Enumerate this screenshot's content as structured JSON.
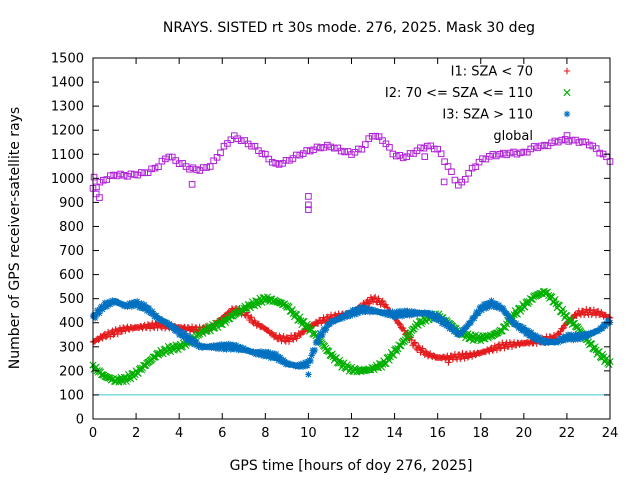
{
  "chart_data": {
    "type": "scatter",
    "title": "NRAYS. SISTED rt 30s mode. 276, 2025. Mask 30 deg",
    "xlabel": "GPS time [hours of doy 276, 2025]",
    "ylabel": "Number of GPS receiver-satellite rays",
    "xlim": [
      0,
      24
    ],
    "ylim": [
      0,
      1500
    ],
    "xticks": [
      0,
      2,
      4,
      6,
      8,
      10,
      12,
      14,
      16,
      18,
      20,
      22,
      24
    ],
    "yticks": [
      0,
      100,
      200,
      300,
      400,
      500,
      600,
      700,
      800,
      900,
      1000,
      1100,
      1200,
      1300,
      1400,
      1500
    ],
    "grid": false,
    "legend_position": "top-right",
    "reference_line": {
      "y": 100,
      "color": "#40c8d8"
    },
    "series": [
      {
        "name": "I1: SZA < 70",
        "marker": "+",
        "color": "#e41a1c",
        "x": [
          0,
          0.5,
          1,
          1.5,
          2,
          2.5,
          3,
          3.5,
          4,
          4.5,
          5,
          5.5,
          6,
          6.5,
          7,
          7.5,
          8,
          8.5,
          9,
          9.5,
          10,
          10.5,
          11,
          11.5,
          12,
          12.5,
          13,
          13.5,
          14,
          14.5,
          15,
          15.5,
          16,
          16.5,
          17,
          17.5,
          18,
          18.5,
          19,
          19.5,
          20,
          20.5,
          21,
          21.5,
          22,
          22.5,
          23,
          23.5,
          24
        ],
        "y": [
          320,
          345,
          360,
          375,
          380,
          385,
          390,
          385,
          380,
          375,
          370,
          380,
          420,
          455,
          445,
          400,
          375,
          340,
          330,
          345,
          380,
          405,
          420,
          430,
          440,
          470,
          500,
          480,
          420,
          360,
          300,
          270,
          255,
          255,
          260,
          265,
          275,
          290,
          305,
          310,
          315,
          320,
          330,
          340,
          400,
          440,
          445,
          440,
          420
        ]
      },
      {
        "name": "I2: 70 <= SZA <= 110",
        "marker": "x",
        "color": "#00b000",
        "x": [
          0,
          0.5,
          1,
          1.5,
          2,
          2.5,
          3,
          3.5,
          4,
          4.5,
          5,
          5.5,
          6,
          6.5,
          7,
          7.5,
          8,
          8.5,
          9,
          9.5,
          10,
          10.5,
          11,
          11.5,
          12,
          12.5,
          13,
          13.5,
          14,
          14.5,
          15,
          15.5,
          16,
          16.5,
          17,
          17.5,
          18,
          18.5,
          19,
          19.5,
          20,
          20.5,
          21,
          21.5,
          22,
          22.5,
          23,
          23.5,
          24
        ],
        "y": [
          220,
          180,
          160,
          165,
          190,
          230,
          270,
          290,
          300,
          320,
          360,
          380,
          400,
          430,
          460,
          480,
          500,
          490,
          470,
          420,
          380,
          330,
          270,
          230,
          205,
          200,
          210,
          230,
          280,
          330,
          390,
          420,
          430,
          400,
          360,
          340,
          335,
          345,
          370,
          430,
          470,
          510,
          530,
          480,
          420,
          380,
          320,
          270,
          230
        ]
      },
      {
        "name": "I3: SZA > 110",
        "marker": "*",
        "color": "#0070c0",
        "x": [
          0,
          0.5,
          1,
          1.5,
          2,
          2.5,
          3,
          3.5,
          4,
          4.5,
          5,
          5.5,
          6,
          6.5,
          7,
          7.5,
          8,
          8.5,
          9,
          9.5,
          10,
          10.5,
          11,
          11.5,
          12,
          12.5,
          13,
          13.5,
          14,
          14.5,
          15,
          15.5,
          16,
          16.5,
          17,
          17.5,
          18,
          18.5,
          19,
          19.5,
          20,
          20.5,
          21,
          21.5,
          22,
          22.5,
          23,
          23.5,
          24
        ],
        "y": [
          420,
          470,
          490,
          470,
          480,
          460,
          420,
          395,
          360,
          330,
          300,
          300,
          300,
          300,
          290,
          275,
          270,
          260,
          230,
          220,
          230,
          340,
          400,
          420,
          440,
          455,
          450,
          440,
          435,
          440,
          440,
          440,
          420,
          390,
          350,
          400,
          460,
          480,
          460,
          400,
          370,
          340,
          320,
          320,
          340,
          340,
          350,
          370,
          410
        ]
      },
      {
        "name": "global",
        "marker": "square",
        "color": "#b020d8",
        "x": [
          0,
          0.5,
          1,
          1.5,
          2,
          2.5,
          3,
          3.5,
          4,
          4.5,
          5,
          5.5,
          6,
          6.5,
          7,
          7.5,
          8,
          8.5,
          9,
          9.5,
          10,
          10.5,
          11,
          11.5,
          12,
          12.5,
          13,
          13.5,
          14,
          14.5,
          15,
          15.5,
          16,
          16.5,
          17,
          17.5,
          18,
          18.5,
          19,
          19.5,
          20,
          20.5,
          21,
          21.5,
          22,
          22.5,
          23,
          23.5,
          24
        ],
        "y": [
          960,
          990,
          1010,
          1010,
          1020,
          1030,
          1050,
          1090,
          1060,
          1040,
          1040,
          1060,
          1120,
          1170,
          1150,
          1130,
          1100,
          1060,
          1070,
          1090,
          1110,
          1130,
          1140,
          1120,
          1100,
          1120,
          1180,
          1160,
          1100,
          1090,
          1110,
          1130,
          1120,
          1050,
          970,
          1030,
          1070,
          1090,
          1100,
          1110,
          1110,
          1130,
          1130,
          1150,
          1160,
          1160,
          1150,
          1110,
          1070
        ]
      }
    ],
    "outliers": [
      {
        "series": "global",
        "x": [
          0.05,
          0.15,
          0.3,
          4.6,
          10.0,
          10.0,
          10.0,
          15.4,
          16.3
        ],
        "y": [
          1005,
          935,
          920,
          975,
          925,
          890,
          870,
          1090,
          985
        ]
      },
      {
        "series": "I3: SZA > 110",
        "x": [
          10.0
        ],
        "y": [
          185
        ]
      },
      {
        "series": "I1: SZA < 70",
        "x": [
          16.5
        ],
        "y": [
          235
        ]
      }
    ]
  }
}
